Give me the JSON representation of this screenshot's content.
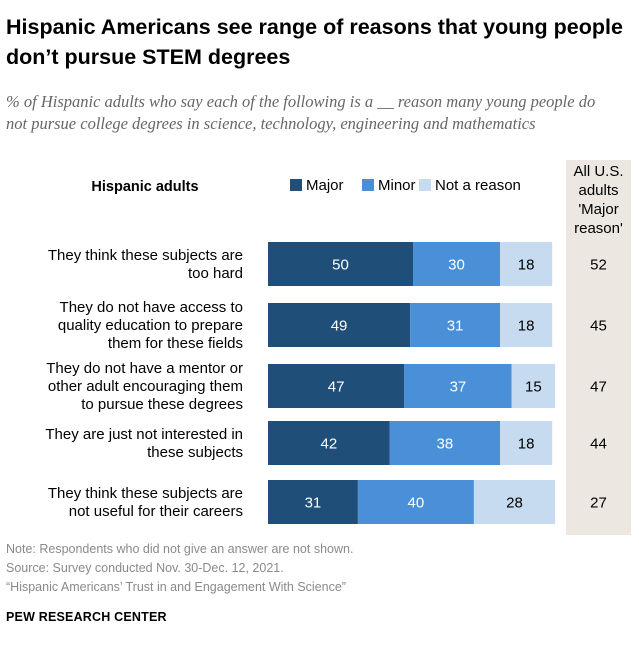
{
  "title": "Hispanic Americans see range of reasons that young people don’t pursue STEM degrees",
  "subtitle": "% of Hispanic adults who say each of the following is a __ reason many young people do not pursue college degrees in science, technology, engineering and mathematics",
  "chart_data": {
    "type": "bar",
    "orientation": "horizontal",
    "stacked": true,
    "group_label": "Hispanic adults",
    "categories": [
      [
        "They think these subjects are",
        "too hard"
      ],
      [
        "They do not have access to",
        "quality education to prepare",
        "them for these fields"
      ],
      [
        "They do not have a mentor or",
        "other adult encouraging them",
        "to pursue these degrees"
      ],
      [
        "They are just not interested in",
        "these subjects"
      ],
      [
        "They think these subjects are",
        "not useful for their careers"
      ]
    ],
    "series": [
      {
        "name": "Major",
        "color": "#1f4e79",
        "label_color": "#ffffff",
        "values": [
          50,
          49,
          47,
          42,
          31
        ]
      },
      {
        "name": "Minor",
        "color": "#4a90d9",
        "label_color": "#ffffff",
        "values": [
          30,
          31,
          37,
          38,
          40
        ]
      },
      {
        "name": "Not a reason",
        "color": "#c6daf0",
        "label_color": "#000000",
        "values": [
          18,
          18,
          15,
          18,
          28
        ]
      }
    ],
    "side_column": {
      "header": [
        "All U.S.",
        "adults",
        "'Major",
        "reason'"
      ],
      "values": [
        52,
        45,
        47,
        44,
        27
      ],
      "background": "#ece8e1"
    },
    "xlim": [
      0,
      100
    ]
  },
  "notes": [
    "Note: Respondents who did not give an answer are not shown.",
    "Source: Survey conducted Nov. 30-Dec. 12, 2021.",
    "“Hispanic Americans’ Trust in and Engagement With Science”"
  ],
  "source_org": "PEW RESEARCH CENTER"
}
